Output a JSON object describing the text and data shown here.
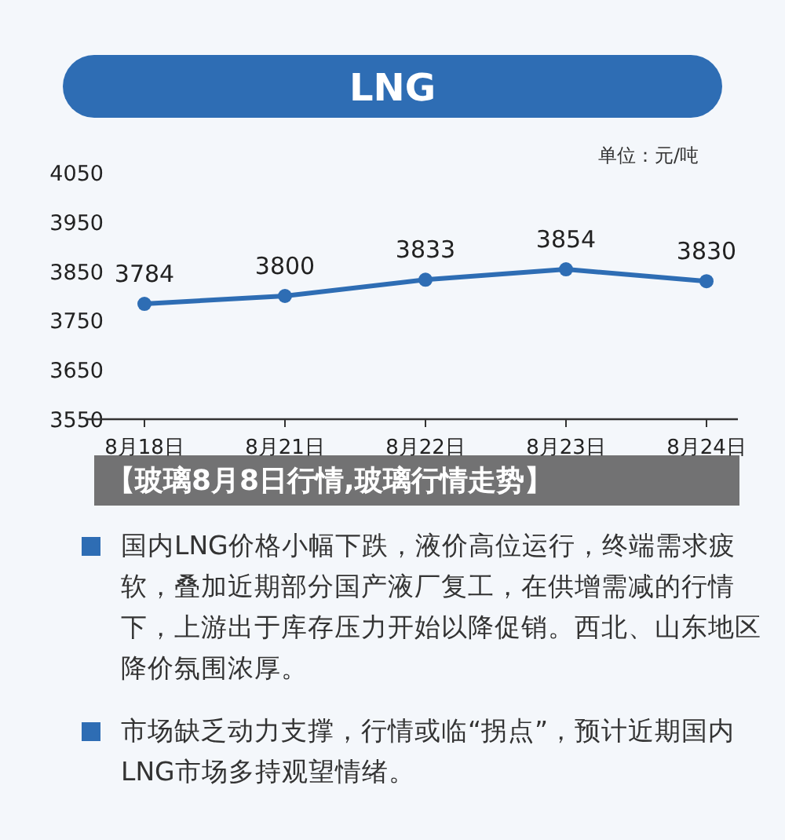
{
  "chart_data": {
    "type": "line",
    "title": "LNG",
    "categories": [
      "8月18日",
      "8月21日",
      "8月22日",
      "8月23日",
      "8月24日"
    ],
    "series": [
      {
        "color": "#2e6db4",
        "values": [
          3784,
          3800,
          3833,
          3854,
          3830
        ]
      }
    ],
    "ylim": [
      3550,
      4050
    ],
    "yticks": [
      3550,
      3650,
      3750,
      3850,
      3950,
      4050
    ],
    "data_labels": true,
    "marker": "circle",
    "line_style": "solid",
    "annotations": [
      "单位：元/吨",
      "【玻璃8月8日行情,玻璃行情走势】",
      "国内LNG价格小幅下跌，液价高位运行，终端需求疲软，叠加近期部分国产液厂复工，在供增需减的行情下，上游出于库存压力开始以降促销。西北、山东地区降价氛围浓厚。",
      "市场缺乏动力支撑，行情或临“拐点”，预计近期国内LNG市场多持观望情绪。"
    ]
  }
}
